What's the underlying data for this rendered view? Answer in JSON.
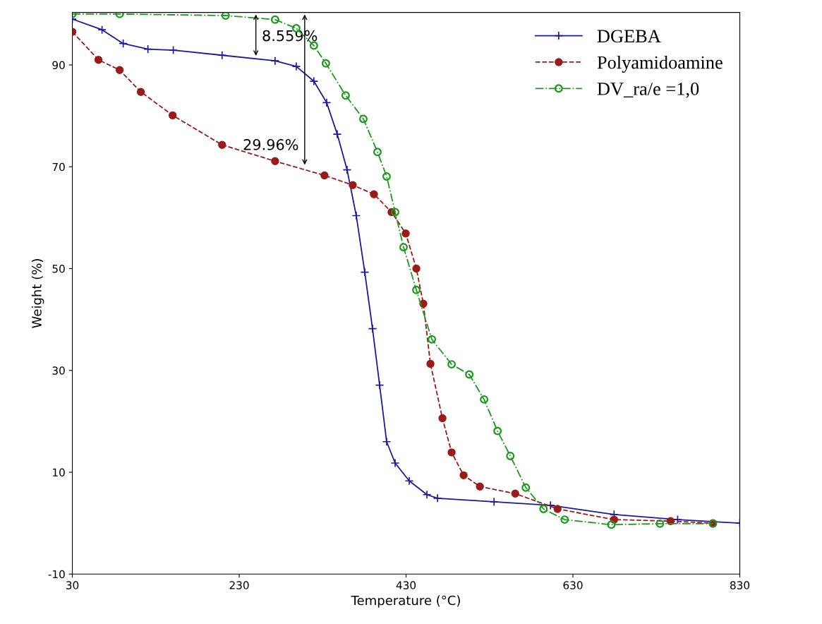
{
  "chart_data": {
    "type": "line",
    "xlabel": "Temperature (°C)",
    "ylabel": "Weight (%)",
    "xlim": [
      30,
      830
    ],
    "xticks": [
      30,
      230,
      430,
      630,
      830
    ],
    "ylim": [
      -10,
      100.3
    ],
    "yticks": [
      -10,
      10,
      30,
      50,
      70,
      90
    ],
    "grid": false,
    "legend": "top right",
    "series": [
      {
        "name": "DGEBA",
        "color": "#1a1aa0",
        "marker": "cross",
        "line_style": "solid",
        "x": [
          30,
          65.6,
          91,
          120.6,
          151,
          209.5,
          273,
          298.4,
          319.5,
          334.8,
          347.5,
          359.3,
          370.3,
          380.5,
          389.8,
          398.3,
          406.7,
          416.9,
          433.8,
          455,
          467.7,
          535.4,
          603.1,
          679.3,
          755.5,
          830
        ],
        "values": [
          99.0,
          96.9,
          94.2,
          93.1,
          92.9,
          91.9,
          90.8,
          89.7,
          86.8,
          82.6,
          76.4,
          69.4,
          60.4,
          49.3,
          38.2,
          27.1,
          16.0,
          11.8,
          8.3,
          5.6,
          4.9,
          4.2,
          3.5,
          1.7,
          0.7,
          0.0
        ]
      },
      {
        "name": "Polyamidoamine",
        "color": "#9b1a1a",
        "marker": "circle",
        "line_style": "dashed",
        "x": [
          30,
          61.3,
          86.7,
          112.1,
          150.2,
          209.5,
          273,
          332.2,
          366.1,
          391.5,
          412.6,
          429.6,
          442.3,
          450.7,
          459.2,
          473.6,
          484.6,
          499,
          518.5,
          560.8,
          611.6,
          679.3,
          747,
          797.8
        ],
        "values": [
          96.5,
          91.0,
          89.0,
          84.7,
          80.1,
          74.3,
          71.1,
          68.3,
          66.4,
          64.6,
          61.1,
          56.9,
          50.0,
          43.1,
          31.3,
          20.6,
          13.9,
          9.4,
          7.2,
          5.8,
          2.8,
          0.7,
          0.4,
          0.0
        ]
      },
      {
        "name": "DV_ra/e =1,0",
        "color": "#1a9a1a",
        "marker": "circle",
        "line_style": "dashdot",
        "x": [
          30,
          86.7,
          213.7,
          273,
          298.4,
          319.5,
          333.9,
          357.6,
          378.8,
          395.7,
          406.7,
          416.9,
          427,
          442.3,
          460.9,
          484.6,
          505.8,
          523.5,
          539.6,
          554.9,
          573.5,
          594.7,
          620.1,
          676,
          734.3,
          797.8
        ],
        "values": [
          100.0,
          100.0,
          99.7,
          98.9,
          97.2,
          93.8,
          90.3,
          84.0,
          79.4,
          72.9,
          68.1,
          61.1,
          54.2,
          45.8,
          36.1,
          31.2,
          29.2,
          24.3,
          18.1,
          13.2,
          7.0,
          2.8,
          0.7,
          -0.3,
          -0.1,
          -0.1
        ]
      }
    ],
    "annotations": [
      {
        "text": "8.559%",
        "x": 250,
        "y": 91.4
      },
      {
        "text": "29.96%",
        "x": 308.5,
        "y": 70
      }
    ]
  }
}
